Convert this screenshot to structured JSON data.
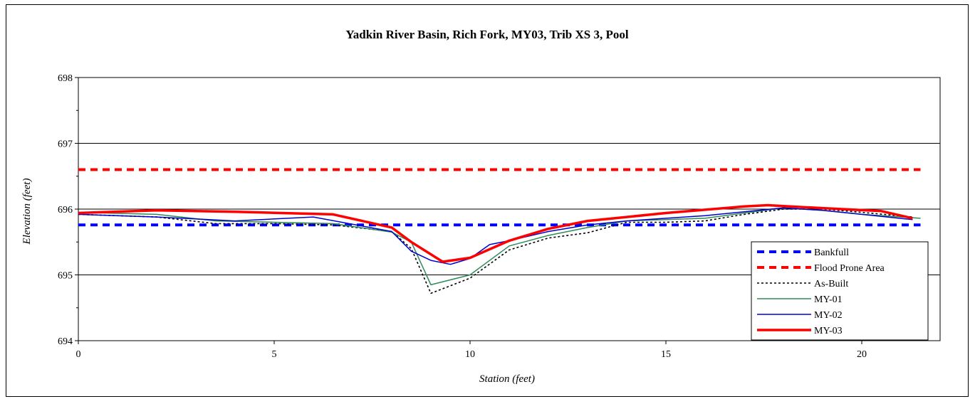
{
  "chart_data": {
    "type": "line",
    "title": "Yadkin River Basin, Rich Fork, MY03, Trib XS 3, Pool",
    "xlabel": "Station (feet)",
    "ylabel": "Elevation (feet)",
    "xlim": [
      0,
      22
    ],
    "ylim": [
      694,
      698
    ],
    "x_ticks": [
      0,
      5,
      10,
      15,
      20
    ],
    "y_ticks": [
      694,
      695,
      696,
      697,
      698
    ],
    "x_tick_labels": [
      "0",
      "5",
      "10",
      "15",
      "20"
    ],
    "y_tick_labels": [
      "694",
      "695",
      "696",
      "697",
      "698"
    ],
    "grid": "horizontal major gridlines",
    "legend_position": "lower-right",
    "series": [
      {
        "name": "Bankfull",
        "color": "#0000ff",
        "style": "dashed-thick",
        "x": [
          0,
          21.5
        ],
        "y": [
          695.76,
          695.76
        ]
      },
      {
        "name": "Flood Prone Area",
        "color": "#ff0000",
        "style": "dashed-thick",
        "x": [
          0,
          21.5
        ],
        "y": [
          696.6,
          696.6
        ]
      },
      {
        "name": "As-Built",
        "color": "#000000",
        "style": "dotted",
        "x": [
          0,
          2,
          3.5,
          5,
          6.5,
          8,
          8.5,
          9,
          10,
          11,
          12,
          13,
          14,
          15,
          16,
          17,
          18,
          19,
          20,
          21.3
        ],
        "y": [
          695.92,
          695.88,
          695.78,
          695.78,
          695.76,
          695.66,
          695.4,
          694.72,
          694.95,
          695.38,
          695.56,
          695.64,
          695.8,
          695.8,
          695.82,
          695.92,
          696.0,
          696.0,
          695.95,
          695.88
        ]
      },
      {
        "name": "MY-01",
        "color": "#2e8b57",
        "style": "solid-thin",
        "x": [
          0,
          2,
          3.5,
          5,
          6.5,
          8,
          8.5,
          9,
          10,
          11,
          12,
          13,
          14,
          15,
          16,
          17,
          18,
          19,
          20,
          21.5
        ],
        "y": [
          695.95,
          695.92,
          695.82,
          695.8,
          695.78,
          695.65,
          695.5,
          694.85,
          695.0,
          695.44,
          695.6,
          695.72,
          695.82,
          695.84,
          695.86,
          695.94,
          696.02,
          695.98,
          695.92,
          695.86
        ]
      },
      {
        "name": "MY-02",
        "color": "#0000cd",
        "style": "solid-thin",
        "x": [
          0,
          2,
          4,
          6,
          8,
          8.5,
          9,
          9.5,
          10,
          10.5,
          11,
          12,
          13,
          14,
          15,
          16,
          17,
          18,
          19,
          20,
          21.3
        ],
        "y": [
          695.92,
          695.88,
          695.82,
          695.88,
          695.66,
          695.36,
          695.22,
          695.16,
          695.25,
          695.46,
          695.52,
          695.66,
          695.76,
          695.82,
          695.86,
          695.9,
          695.96,
          696.02,
          695.98,
          695.92,
          695.84
        ]
      },
      {
        "name": "MY-03",
        "color": "#ff0000",
        "style": "solid-thick",
        "x": [
          0,
          2,
          4,
          6.5,
          8,
          8.5,
          9.3,
          10,
          11,
          12,
          13,
          14,
          15,
          16,
          17,
          17.6,
          18.5,
          19.5,
          20.5,
          21.3
        ],
        "y": [
          695.94,
          695.98,
          695.96,
          695.92,
          695.72,
          695.5,
          695.2,
          695.26,
          695.52,
          695.7,
          695.82,
          695.88,
          695.94,
          695.99,
          696.04,
          696.06,
          696.03,
          696.0,
          695.97,
          695.86
        ]
      }
    ]
  }
}
